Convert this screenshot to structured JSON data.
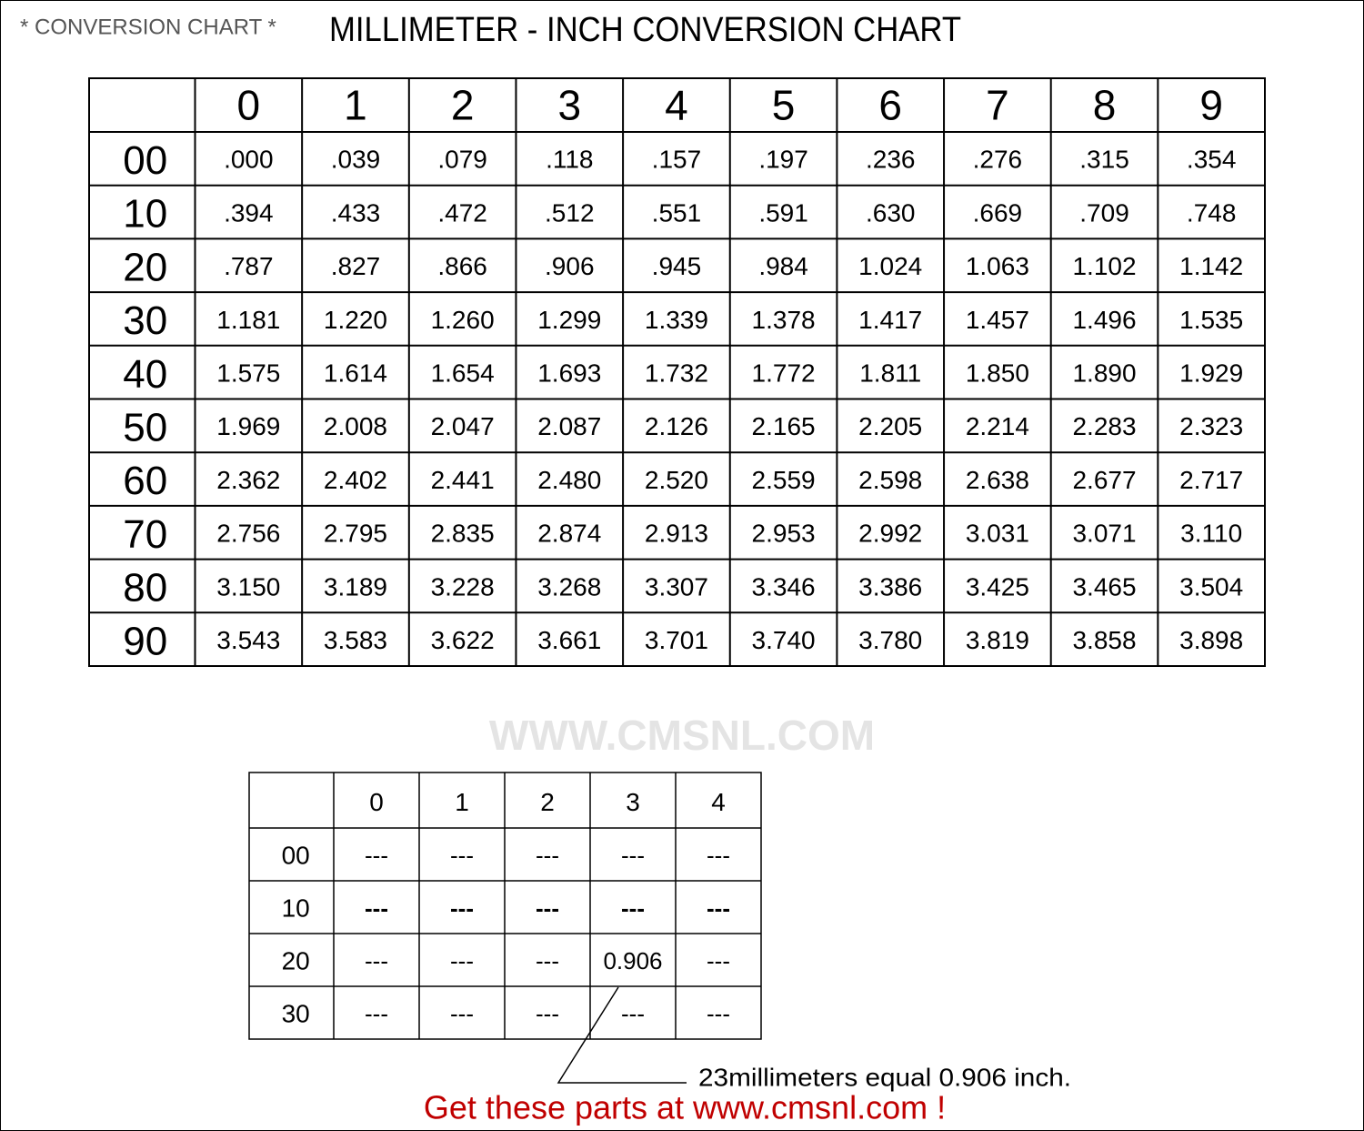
{
  "header": {
    "label": "* CONVERSION CHART *",
    "title": "MILLIMETER - INCH CONVERSION CHART"
  },
  "watermark": "WWW.CMSNL.COM",
  "main_table": {
    "columns": [
      "0",
      "1",
      "2",
      "3",
      "4",
      "5",
      "6",
      "7",
      "8",
      "9"
    ],
    "rows": [
      {
        "label": "00",
        "values": [
          ".000",
          ".039",
          ".079",
          ".118",
          ".157",
          ".197",
          ".236",
          ".276",
          ".315",
          ".354"
        ]
      },
      {
        "label": "10",
        "values": [
          ".394",
          ".433",
          ".472",
          ".512",
          ".551",
          ".591",
          ".630",
          ".669",
          ".709",
          ".748"
        ]
      },
      {
        "label": "20",
        "values": [
          ".787",
          ".827",
          ".866",
          ".906",
          ".945",
          ".984",
          "1.024",
          "1.063",
          "1.102",
          "1.142"
        ]
      },
      {
        "label": "30",
        "values": [
          "1.181",
          "1.220",
          "1.260",
          "1.299",
          "1.339",
          "1.378",
          "1.417",
          "1.457",
          "1.496",
          "1.535"
        ]
      },
      {
        "label": "40",
        "values": [
          "1.575",
          "1.614",
          "1.654",
          "1.693",
          "1.732",
          "1.772",
          "1.811",
          "1.850",
          "1.890",
          "1.929"
        ]
      },
      {
        "label": "50",
        "values": [
          "1.969",
          "2.008",
          "2.047",
          "2.087",
          "2.126",
          "2.165",
          "2.205",
          "2.214",
          "2.283",
          "2.323"
        ]
      },
      {
        "label": "60",
        "values": [
          "2.362",
          "2.402",
          "2.441",
          "2.480",
          "2.520",
          "2.559",
          "2.598",
          "2.638",
          "2.677",
          "2.717"
        ]
      },
      {
        "label": "70",
        "values": [
          "2.756",
          "2.795",
          "2.835",
          "2.874",
          "2.913",
          "2.953",
          "2.992",
          "3.031",
          "3.071",
          "3.110"
        ]
      },
      {
        "label": "80",
        "values": [
          "3.150",
          "3.189",
          "3.228",
          "3.268",
          "3.307",
          "3.346",
          "3.386",
          "3.425",
          "3.465",
          "3.504"
        ]
      },
      {
        "label": "90",
        "values": [
          "3.543",
          "3.583",
          "3.622",
          "3.661",
          "3.701",
          "3.740",
          "3.780",
          "3.819",
          "3.858",
          "3.898"
        ]
      }
    ]
  },
  "example_table": {
    "columns": [
      "0",
      "1",
      "2",
      "3",
      "4"
    ],
    "rows": [
      {
        "label": "00",
        "values": [
          "---",
          "---",
          "---",
          "---",
          "---"
        ]
      },
      {
        "label": "10",
        "values": [
          "---",
          "---",
          "---",
          "---",
          "---"
        ]
      },
      {
        "label": "20",
        "values": [
          "---",
          "---",
          "---",
          "0.906",
          "---"
        ]
      },
      {
        "label": "30",
        "values": [
          "---",
          "---",
          "---",
          "---",
          "---"
        ]
      }
    ]
  },
  "annotation": "23millimeters equal 0.906 inch.",
  "footer": "Get these parts at www.cmsnl.com !"
}
